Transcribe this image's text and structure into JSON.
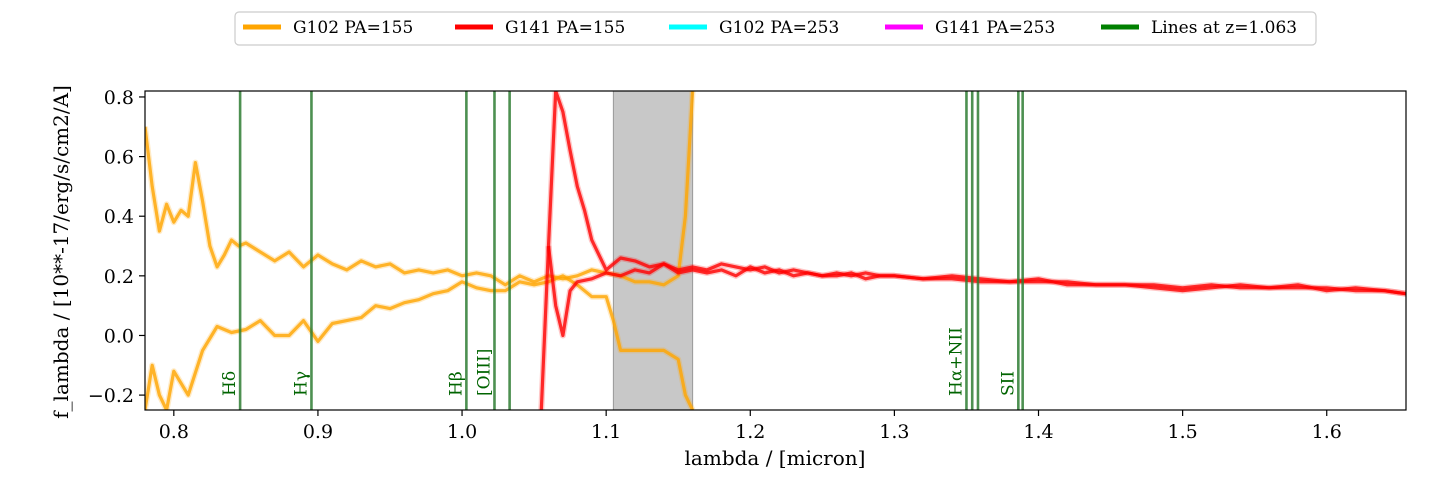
{
  "chart_data": {
    "type": "line",
    "title": "",
    "xlabel": "lambda / [micron]",
    "ylabel": "f_lambda / [10**-17/erg/s/cm2/A]",
    "xlim": [
      0.78,
      1.655
    ],
    "ylim": [
      -0.25,
      0.82
    ],
    "xticks": [
      0.8,
      0.9,
      1.0,
      1.1,
      1.2,
      1.3,
      1.4,
      1.5,
      1.6
    ],
    "xtick_labels": [
      "0.8",
      "0.9",
      "1.0",
      "1.1",
      "1.2",
      "1.3",
      "1.4",
      "1.5",
      "1.6"
    ],
    "yticks": [
      -0.2,
      0.0,
      0.2,
      0.4,
      0.6,
      0.8
    ],
    "ytick_labels": [
      "−0.2",
      "0.0",
      "0.2",
      "0.4",
      "0.6",
      "0.8"
    ],
    "grid": false,
    "legend_position": "top-center, outside plot",
    "legend": [
      {
        "label": "G102 PA=155",
        "color": "#ffa500"
      },
      {
        "label": "G141 PA=155",
        "color": "#ff0000"
      },
      {
        "label": "G102 PA=253",
        "color": "#00ffff"
      },
      {
        "label": "G141 PA=253",
        "color": "#ff00ff"
      },
      {
        "label": "Lines at z=1.063",
        "color": "#008000"
      }
    ],
    "masked_band": {
      "x0": 1.105,
      "x1": 1.16,
      "color": "#c8c8c8"
    },
    "series": [
      {
        "name": "G102 PA=155",
        "color": "#ffa500",
        "x": [
          0.78,
          0.785,
          0.79,
          0.795,
          0.8,
          0.805,
          0.81,
          0.815,
          0.82,
          0.825,
          0.83,
          0.835,
          0.84,
          0.845,
          0.85,
          0.86,
          0.87,
          0.88,
          0.89,
          0.9,
          0.91,
          0.92,
          0.93,
          0.94,
          0.95,
          0.96,
          0.97,
          0.98,
          0.99,
          1.0,
          1.01,
          1.02,
          1.03,
          1.04,
          1.05,
          1.06,
          1.07,
          1.08,
          1.09,
          1.1,
          1.11,
          1.12,
          1.13,
          1.14,
          1.15,
          1.155,
          1.16
        ],
        "y": [
          0.7,
          0.5,
          0.35,
          0.44,
          0.38,
          0.42,
          0.4,
          0.58,
          0.45,
          0.3,
          0.23,
          0.27,
          0.32,
          0.3,
          0.31,
          0.28,
          0.25,
          0.28,
          0.23,
          0.27,
          0.24,
          0.22,
          0.25,
          0.23,
          0.24,
          0.21,
          0.22,
          0.21,
          0.22,
          0.2,
          0.21,
          0.2,
          0.17,
          0.2,
          0.18,
          0.2,
          0.19,
          0.2,
          0.22,
          0.21,
          0.2,
          0.18,
          0.18,
          0.17,
          0.2,
          0.4,
          0.82
        ]
      },
      {
        "name": "G102 PA=155",
        "color": "#ffa500",
        "x": [
          0.78,
          0.785,
          0.79,
          0.795,
          0.8,
          0.81,
          0.82,
          0.83,
          0.84,
          0.85,
          0.86,
          0.87,
          0.88,
          0.89,
          0.9,
          0.91,
          0.92,
          0.93,
          0.94,
          0.95,
          0.96,
          0.97,
          0.98,
          0.99,
          1.0,
          1.01,
          1.02,
          1.03,
          1.04,
          1.05,
          1.06,
          1.07,
          1.08,
          1.09,
          1.1,
          1.105,
          1.11,
          1.12,
          1.13,
          1.14,
          1.15,
          1.155,
          1.16
        ],
        "y": [
          -0.25,
          -0.1,
          -0.2,
          -0.25,
          -0.12,
          -0.2,
          -0.05,
          0.03,
          0.01,
          0.02,
          0.05,
          0.0,
          0.0,
          0.05,
          -0.02,
          0.04,
          0.05,
          0.06,
          0.1,
          0.09,
          0.11,
          0.12,
          0.14,
          0.15,
          0.18,
          0.16,
          0.15,
          0.15,
          0.18,
          0.17,
          0.18,
          0.2,
          0.17,
          0.13,
          0.13,
          0.05,
          -0.05,
          -0.05,
          -0.05,
          -0.05,
          -0.08,
          -0.2,
          -0.25
        ]
      },
      {
        "name": "G141 PA=155",
        "color": "#ff0000",
        "x": [
          1.055,
          1.06,
          1.065,
          1.07,
          1.075,
          1.08,
          1.085,
          1.09,
          1.1,
          1.11,
          1.12,
          1.13,
          1.14,
          1.15,
          1.16,
          1.17,
          1.18,
          1.19,
          1.2,
          1.21,
          1.22,
          1.23,
          1.24,
          1.25,
          1.26,
          1.27,
          1.28,
          1.29,
          1.3,
          1.32,
          1.34,
          1.36,
          1.38,
          1.4,
          1.42,
          1.44,
          1.46,
          1.48,
          1.5,
          1.52,
          1.54,
          1.56,
          1.58,
          1.6,
          1.62,
          1.64,
          1.655
        ],
        "y": [
          -0.25,
          0.3,
          0.82,
          0.75,
          0.62,
          0.5,
          0.42,
          0.32,
          0.22,
          0.26,
          0.25,
          0.23,
          0.24,
          0.22,
          0.23,
          0.22,
          0.24,
          0.23,
          0.22,
          0.23,
          0.21,
          0.22,
          0.21,
          0.2,
          0.21,
          0.2,
          0.21,
          0.2,
          0.2,
          0.19,
          0.2,
          0.19,
          0.18,
          0.18,
          0.18,
          0.17,
          0.17,
          0.17,
          0.16,
          0.17,
          0.16,
          0.16,
          0.16,
          0.16,
          0.15,
          0.15,
          0.14
        ]
      },
      {
        "name": "G141 PA=155",
        "color": "#ff0000",
        "x": [
          1.06,
          1.065,
          1.07,
          1.075,
          1.08,
          1.09,
          1.1,
          1.11,
          1.12,
          1.13,
          1.14,
          1.15,
          1.16,
          1.17,
          1.18,
          1.19,
          1.2,
          1.21,
          1.22,
          1.23,
          1.24,
          1.25,
          1.26,
          1.27,
          1.28,
          1.29,
          1.3,
          1.32,
          1.34,
          1.36,
          1.38,
          1.4,
          1.42,
          1.44,
          1.46,
          1.48,
          1.5,
          1.52,
          1.54,
          1.56,
          1.58,
          1.6,
          1.62,
          1.64,
          1.655
        ],
        "y": [
          0.3,
          0.1,
          0.0,
          0.15,
          0.18,
          0.19,
          0.21,
          0.2,
          0.22,
          0.21,
          0.24,
          0.21,
          0.22,
          0.21,
          0.22,
          0.2,
          0.23,
          0.21,
          0.22,
          0.2,
          0.21,
          0.2,
          0.2,
          0.21,
          0.19,
          0.2,
          0.2,
          0.19,
          0.19,
          0.18,
          0.18,
          0.19,
          0.17,
          0.17,
          0.17,
          0.16,
          0.15,
          0.16,
          0.17,
          0.16,
          0.17,
          0.15,
          0.16,
          0.15,
          0.14
        ]
      }
    ],
    "emission_lines": [
      {
        "label": "Hδ",
        "x": [
          0.846
        ]
      },
      {
        "label": "Hγ",
        "x": [
          0.8955
        ]
      },
      {
        "label": "Hβ",
        "x": [
          1.003
        ]
      },
      {
        "label": "[OIII]",
        "x": [
          1.0225,
          1.033
        ]
      },
      {
        "label": "Hα+NII",
        "x": [
          1.35,
          1.354,
          1.358
        ]
      },
      {
        "label": "SII",
        "x": [
          1.386,
          1.389
        ]
      }
    ]
  }
}
